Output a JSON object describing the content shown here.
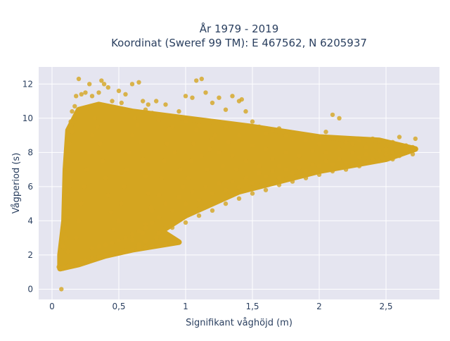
{
  "chart_data": {
    "type": "scatter",
    "title_lines": [
      "År 1979 - 2019",
      "Koordinat (Sweref 99 TM): E 467562, N 6205937"
    ],
    "xlabel": "Signifikant våghöjd (m)",
    "ylabel": "Vågperiod (s)",
    "xlim": [
      -0.1,
      2.9
    ],
    "ylim": [
      -0.6,
      13.0
    ],
    "x_ticks": [
      0,
      0.5,
      1,
      1.5,
      2,
      2.5
    ],
    "x_tick_labels": [
      "0",
      "0,5",
      "1",
      "1,5",
      "2",
      "2,5"
    ],
    "y_ticks": [
      0,
      2,
      4,
      6,
      8,
      10,
      12
    ],
    "y_tick_labels": [
      "0",
      "2",
      "4",
      "6",
      "8",
      "10",
      "12"
    ],
    "grid": true,
    "legend": "none",
    "colors": {
      "marker": "#d4a520",
      "plot_background": "#e5e5f0",
      "grid": "#ffffff"
    },
    "series": [
      {
        "points": [
          [
            0.07,
            0.0
          ],
          [
            0.05,
            1.3
          ],
          [
            0.06,
            1.25
          ],
          [
            0.08,
            1.2
          ],
          [
            0.1,
            1.3
          ],
          [
            0.12,
            1.35
          ],
          [
            0.15,
            1.4
          ],
          [
            0.18,
            1.5
          ],
          [
            0.22,
            1.65
          ],
          [
            0.3,
            1.8
          ],
          [
            0.4,
            2.0
          ],
          [
            0.5,
            2.15
          ],
          [
            0.6,
            2.3
          ],
          [
            0.7,
            2.45
          ],
          [
            0.8,
            2.55
          ],
          [
            0.9,
            2.7
          ],
          [
            0.95,
            2.75
          ],
          [
            0.12,
            2.2
          ],
          [
            0.08,
            2.5
          ],
          [
            0.1,
            3.0
          ],
          [
            0.1,
            3.6
          ],
          [
            0.12,
            4.2
          ],
          [
            0.12,
            4.8
          ],
          [
            0.12,
            5.5
          ],
          [
            0.13,
            6.0
          ],
          [
            0.13,
            6.5
          ],
          [
            0.12,
            7.0
          ],
          [
            0.12,
            7.5
          ],
          [
            0.13,
            8.0
          ],
          [
            0.13,
            8.5
          ],
          [
            0.15,
            9.2
          ],
          [
            0.14,
            9.8
          ],
          [
            0.15,
            10.4
          ],
          [
            0.17,
            10.7
          ],
          [
            0.18,
            11.3
          ],
          [
            0.2,
            12.3
          ],
          [
            0.22,
            11.4
          ],
          [
            0.25,
            11.5
          ],
          [
            0.28,
            12.0
          ],
          [
            0.3,
            11.3
          ],
          [
            0.35,
            11.5
          ],
          [
            0.37,
            12.2
          ],
          [
            0.39,
            12.0
          ],
          [
            0.42,
            11.8
          ],
          [
            0.45,
            11.0
          ],
          [
            0.5,
            11.6
          ],
          [
            0.52,
            10.9
          ],
          [
            0.55,
            11.4
          ],
          [
            0.6,
            12.0
          ],
          [
            0.65,
            12.1
          ],
          [
            0.68,
            11.0
          ],
          [
            0.7,
            10.5
          ],
          [
            0.72,
            10.8
          ],
          [
            0.75,
            10.3
          ],
          [
            0.78,
            11.0
          ],
          [
            0.8,
            10.2
          ],
          [
            0.85,
            10.8
          ],
          [
            0.9,
            10.1
          ],
          [
            0.95,
            10.4
          ],
          [
            1.0,
            11.3
          ],
          [
            1.05,
            11.2
          ],
          [
            1.08,
            12.2
          ],
          [
            1.12,
            12.3
          ],
          [
            1.15,
            11.5
          ],
          [
            1.2,
            10.9
          ],
          [
            1.25,
            11.2
          ],
          [
            1.3,
            10.5
          ],
          [
            1.35,
            11.3
          ],
          [
            1.4,
            11.0
          ],
          [
            1.42,
            11.1
          ],
          [
            1.45,
            10.4
          ],
          [
            1.5,
            9.8
          ],
          [
            1.55,
            9.5
          ],
          [
            1.6,
            9.1
          ],
          [
            1.65,
            9.3
          ],
          [
            1.7,
            9.4
          ],
          [
            1.75,
            9.0
          ],
          [
            1.8,
            8.8
          ],
          [
            1.85,
            9.1
          ],
          [
            1.9,
            8.7
          ],
          [
            1.95,
            8.8
          ],
          [
            2.0,
            8.5
          ],
          [
            2.05,
            9.2
          ],
          [
            2.1,
            10.2
          ],
          [
            2.15,
            10.0
          ],
          [
            2.2,
            8.6
          ],
          [
            2.25,
            8.5
          ],
          [
            2.3,
            8.7
          ],
          [
            2.35,
            8.3
          ],
          [
            2.4,
            8.8
          ],
          [
            2.45,
            8.7
          ],
          [
            2.5,
            8.2
          ],
          [
            2.55,
            8.6
          ],
          [
            2.6,
            8.9
          ],
          [
            2.65,
            8.4
          ],
          [
            2.7,
            8.3
          ],
          [
            2.72,
            8.8
          ],
          [
            2.6,
            7.8
          ],
          [
            2.5,
            7.9
          ],
          [
            2.4,
            7.6
          ],
          [
            2.3,
            7.7
          ],
          [
            2.2,
            7.4
          ],
          [
            2.1,
            7.3
          ],
          [
            2.0,
            7.2
          ],
          [
            1.9,
            6.9
          ],
          [
            1.8,
            6.8
          ],
          [
            1.7,
            6.5
          ],
          [
            1.6,
            6.6
          ],
          [
            1.5,
            6.2
          ],
          [
            1.4,
            6.0
          ],
          [
            1.3,
            5.8
          ],
          [
            1.2,
            5.6
          ],
          [
            1.1,
            5.2
          ],
          [
            1.0,
            5.0
          ],
          [
            0.9,
            4.6
          ],
          [
            0.8,
            4.2
          ],
          [
            0.75,
            3.9
          ],
          [
            0.7,
            3.6
          ],
          [
            0.65,
            3.4
          ],
          [
            0.6,
            3.2
          ],
          [
            0.55,
            3.0
          ],
          [
            0.5,
            2.85
          ],
          [
            0.45,
            2.7
          ],
          [
            0.4,
            2.6
          ],
          [
            0.35,
            2.5
          ],
          [
            0.3,
            2.4
          ],
          [
            0.6,
            2.9
          ],
          [
            0.7,
            2.8
          ],
          [
            0.8,
            3.3
          ],
          [
            0.9,
            3.6
          ],
          [
            1.0,
            3.9
          ],
          [
            1.1,
            4.3
          ],
          [
            1.2,
            4.6
          ],
          [
            1.3,
            5.0
          ],
          [
            1.4,
            5.3
          ],
          [
            1.5,
            5.6
          ],
          [
            1.6,
            5.8
          ],
          [
            1.7,
            6.1
          ],
          [
            1.8,
            6.3
          ],
          [
            1.9,
            6.5
          ],
          [
            2.0,
            6.7
          ],
          [
            2.1,
            6.9
          ],
          [
            2.2,
            7.0
          ],
          [
            2.3,
            7.2
          ],
          [
            0.7,
            3.8
          ],
          [
            0.78,
            3.0
          ],
          [
            0.65,
            2.6
          ],
          [
            0.68,
            3.3
          ],
          [
            1.7,
            7.2
          ],
          [
            1.6,
            8.2
          ],
          [
            1.5,
            8.4
          ],
          [
            1.4,
            9.0
          ],
          [
            1.3,
            9.5
          ],
          [
            1.2,
            8.8
          ],
          [
            1.1,
            9.6
          ],
          [
            1.0,
            9.8
          ],
          [
            0.9,
            9.5
          ],
          [
            0.8,
            9.9
          ],
          [
            1.25,
            8.0
          ],
          [
            1.35,
            7.8
          ],
          [
            1.45,
            7.5
          ],
          [
            1.55,
            7.2
          ],
          [
            1.65,
            7.6
          ],
          [
            1.75,
            8.0
          ],
          [
            1.85,
            7.8
          ],
          [
            1.95,
            8.1
          ],
          [
            2.05,
            8.0
          ],
          [
            2.15,
            8.2
          ],
          [
            2.25,
            8.0
          ],
          [
            2.35,
            7.9
          ],
          [
            2.45,
            8.1
          ],
          [
            2.55,
            8.0
          ],
          [
            2.65,
            8.1
          ],
          [
            2.7,
            7.9
          ],
          [
            2.45,
            7.5
          ],
          [
            2.55,
            7.6
          ],
          [
            2.35,
            7.4
          ],
          [
            2.25,
            7.3
          ],
          [
            2.15,
            7.6
          ],
          [
            2.05,
            7.5
          ],
          [
            1.95,
            7.3
          ],
          [
            1.85,
            7.1
          ],
          [
            1.75,
            7.0
          ],
          [
            1.65,
            6.9
          ],
          [
            1.55,
            6.8
          ],
          [
            1.45,
            6.5
          ],
          [
            1.35,
            6.3
          ],
          [
            1.25,
            6.2
          ],
          [
            1.15,
            6.0
          ],
          [
            1.05,
            5.7
          ],
          [
            0.95,
            5.4
          ],
          [
            0.85,
            5.0
          ],
          [
            0.75,
            4.6
          ],
          [
            0.2,
            1.6
          ],
          [
            0.25,
            1.7
          ],
          [
            0.35,
            1.9
          ],
          [
            0.45,
            2.05
          ],
          [
            0.55,
            2.2
          ],
          [
            0.65,
            2.35
          ],
          [
            0.75,
            2.5
          ],
          [
            0.85,
            2.6
          ],
          [
            0.92,
            2.72
          ],
          [
            0.18,
            3.0
          ],
          [
            0.2,
            4.0
          ],
          [
            0.22,
            5.0
          ],
          [
            0.24,
            6.0
          ],
          [
            0.26,
            7.0
          ],
          [
            0.28,
            8.0
          ],
          [
            0.3,
            9.0
          ],
          [
            0.32,
            10.0
          ],
          [
            0.34,
            9.5
          ],
          [
            0.36,
            8.5
          ],
          [
            0.38,
            7.5
          ],
          [
            0.4,
            6.5
          ],
          [
            0.42,
            5.5
          ],
          [
            0.44,
            4.5
          ],
          [
            0.46,
            3.5
          ],
          [
            0.5,
            4.0
          ],
          [
            0.52,
            5.0
          ],
          [
            0.54,
            6.0
          ],
          [
            0.56,
            7.0
          ],
          [
            0.58,
            8.0
          ],
          [
            0.6,
            9.0
          ],
          [
            0.62,
            10.0
          ],
          [
            0.64,
            9.6
          ],
          [
            0.66,
            8.6
          ],
          [
            0.68,
            7.6
          ],
          [
            0.7,
            6.6
          ],
          [
            0.72,
            5.6
          ],
          [
            0.74,
            4.8
          ],
          [
            0.8,
            5.5
          ],
          [
            0.82,
            6.5
          ],
          [
            0.84,
            7.5
          ],
          [
            0.86,
            8.5
          ],
          [
            0.88,
            9.4
          ],
          [
            0.92,
            8.0
          ],
          [
            0.96,
            7.0
          ],
          [
            0.98,
            6.0
          ],
          [
            1.02,
            6.5
          ],
          [
            1.04,
            7.5
          ],
          [
            1.06,
            8.5
          ],
          [
            1.08,
            9.3
          ],
          [
            1.12,
            7.8
          ],
          [
            1.16,
            7.0
          ],
          [
            1.18,
            8.2
          ],
          [
            1.22,
            9.0
          ],
          [
            1.28,
            7.2
          ],
          [
            1.32,
            8.6
          ],
          [
            1.38,
            7.0
          ]
        ]
      }
    ]
  }
}
